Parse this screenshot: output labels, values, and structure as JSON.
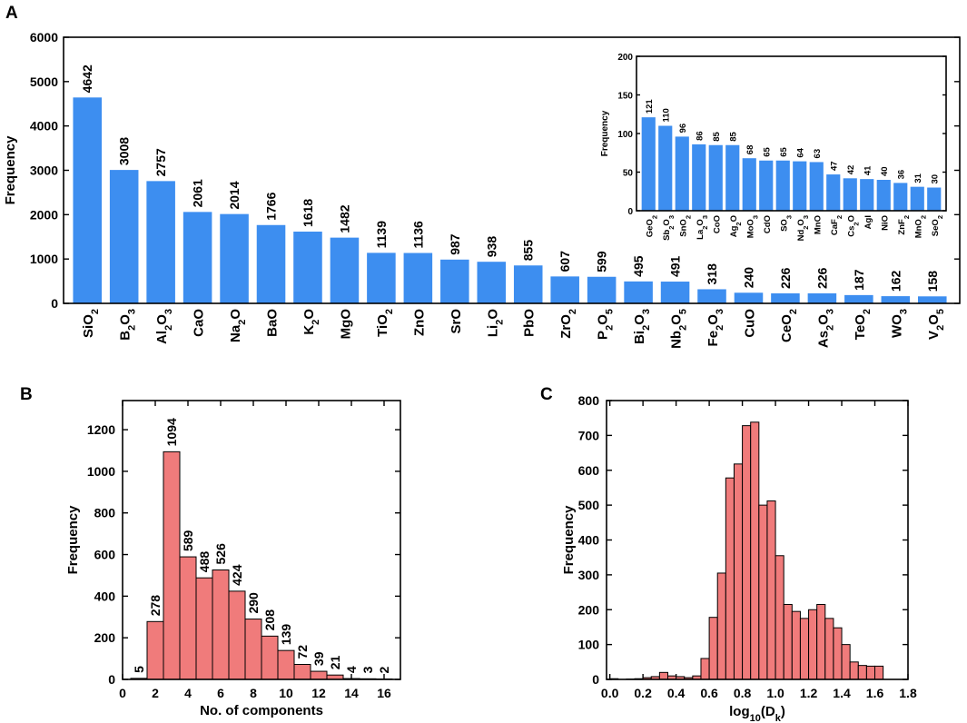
{
  "panels": {
    "a": "A",
    "b": "B",
    "c": "C"
  },
  "chart_data": [
    {
      "id": "A",
      "type": "bar",
      "ylabel": "Frequency",
      "xlabel": "",
      "ylim": [
        0,
        6000
      ],
      "yticks": [
        0,
        1000,
        2000,
        3000,
        4000,
        5000,
        6000
      ],
      "categories": [
        {
          "base": "SiO",
          "sub": "2"
        },
        {
          "base": "B",
          "sub": "2",
          "tail": "O",
          "sub2": "3"
        },
        {
          "base": "Al",
          "sub": "2",
          "tail": "O",
          "sub2": "3"
        },
        {
          "base": "CaO"
        },
        {
          "base": "Na",
          "sub": "2",
          "tail": "O"
        },
        {
          "base": "BaO"
        },
        {
          "base": "K",
          "sub": "2",
          "tail": "O"
        },
        {
          "base": "MgO"
        },
        {
          "base": "TiO",
          "sub": "2"
        },
        {
          "base": "ZnO"
        },
        {
          "base": "SrO"
        },
        {
          "base": "Li",
          "sub": "2",
          "tail": "O"
        },
        {
          "base": "PbO"
        },
        {
          "base": "ZrO",
          "sub": "2"
        },
        {
          "base": "P",
          "sub": "2",
          "tail": "O",
          "sub2": "5"
        },
        {
          "base": "Bi",
          "sub": "2",
          "tail": "O",
          "sub2": "3"
        },
        {
          "base": "Nb",
          "sub": "2",
          "tail": "O",
          "sub2": "5"
        },
        {
          "base": "Fe",
          "sub": "2",
          "tail": "O",
          "sub2": "3"
        },
        {
          "base": "CuO"
        },
        {
          "base": "CeO",
          "sub": "2"
        },
        {
          "base": "As",
          "sub": "2",
          "tail": "O",
          "sub2": "3"
        },
        {
          "base": "TeO",
          "sub": "2"
        },
        {
          "base": "WO",
          "sub": "3"
        },
        {
          "base": "V",
          "sub": "2",
          "tail": "O",
          "sub2": "5"
        }
      ],
      "values": [
        4642,
        3008,
        2757,
        2061,
        2014,
        1766,
        1618,
        1482,
        1139,
        1136,
        987,
        938,
        855,
        607,
        599,
        495,
        491,
        318,
        240,
        226,
        226,
        187,
        162,
        158
      ],
      "color": "#3d8ef0",
      "inset": {
        "type": "bar",
        "ylabel": "Frequency",
        "ylim": [
          0,
          200
        ],
        "yticks": [
          0,
          50,
          100,
          150,
          200
        ],
        "categories": [
          {
            "base": "GeO",
            "sub": "2"
          },
          {
            "base": "Sb",
            "sub": "2",
            "tail": "O",
            "sub2": "3"
          },
          {
            "base": "SnO",
            "sub": "2"
          },
          {
            "base": "La",
            "sub": "2",
            "tail": "O",
            "sub2": "3"
          },
          {
            "base": "CoO"
          },
          {
            "base": "Ag",
            "sub": "2",
            "tail": "O"
          },
          {
            "base": "MoO",
            "sub": "3"
          },
          {
            "base": "CdO"
          },
          {
            "base": "SO",
            "sub": "3"
          },
          {
            "base": "Nd",
            "sub": "2",
            "tail": "O",
            "sub2": "3"
          },
          {
            "base": "MnO"
          },
          {
            "base": "CaF",
            "sub": "2"
          },
          {
            "base": "Cs",
            "sub": "2",
            "tail": "O"
          },
          {
            "base": "AgI"
          },
          {
            "base": "NiO"
          },
          {
            "base": "ZnF",
            "sub": "2"
          },
          {
            "base": "MnO",
            "sub": "2"
          },
          {
            "base": "SeO",
            "sub": "2"
          }
        ],
        "values": [
          121,
          110,
          96,
          86,
          85,
          85,
          68,
          65,
          65,
          64,
          63,
          47,
          42,
          41,
          40,
          36,
          31,
          30
        ]
      }
    },
    {
      "id": "B",
      "type": "bar",
      "xlabel": "No. of components",
      "ylabel": "Frequency",
      "xlim": [
        0,
        17
      ],
      "ylim": [
        0,
        1340
      ],
      "xticks": [
        0,
        2,
        4,
        6,
        8,
        10,
        12,
        14,
        16
      ],
      "yticks": [
        0,
        200,
        400,
        600,
        800,
        1000,
        1200
      ],
      "x": [
        1,
        2,
        3,
        4,
        5,
        6,
        7,
        8,
        9,
        10,
        11,
        12,
        13,
        14,
        15,
        16
      ],
      "values": [
        5,
        278,
        1094,
        589,
        488,
        526,
        424,
        290,
        208,
        139,
        72,
        39,
        21,
        4,
        3,
        2
      ],
      "color": "#f07b7b"
    },
    {
      "id": "C",
      "type": "bar",
      "xlabel": "log10(Dk)",
      "xlabel_base": "log",
      "xlabel_sub": "10",
      "xlabel_mid": "(D",
      "xlabel_sub2": "k",
      "xlabel_end": ")",
      "ylabel": "Frequency",
      "xlim": [
        -0.02,
        1.8
      ],
      "ylim": [
        0,
        800
      ],
      "xticks": [
        0.0,
        0.2,
        0.4,
        0.6,
        0.8,
        1.0,
        1.2,
        1.4,
        1.6,
        1.8
      ],
      "xtick_labels": [
        "0.0",
        "0.2",
        "0.4",
        "0.6",
        "0.8",
        "1.0",
        "1.2",
        "1.4",
        "1.6",
        "1.8"
      ],
      "yticks": [
        0,
        100,
        200,
        300,
        400,
        500,
        600,
        700,
        800
      ],
      "bin_width": 0.05,
      "bin_starts": [
        0.0,
        0.05,
        0.1,
        0.15,
        0.2,
        0.25,
        0.3,
        0.35,
        0.4,
        0.45,
        0.5,
        0.55,
        0.6,
        0.65,
        0.7,
        0.75,
        0.8,
        0.85,
        0.9,
        0.95,
        1.0,
        1.05,
        1.1,
        1.15,
        1.2,
        1.25,
        1.3,
        1.35,
        1.4,
        1.45,
        1.5,
        1.55,
        1.6,
        1.65
      ],
      "values": [
        2,
        0,
        1,
        2,
        5,
        8,
        20,
        10,
        8,
        5,
        10,
        60,
        178,
        305,
        578,
        618,
        728,
        738,
        500,
        512,
        355,
        215,
        195,
        175,
        200,
        215,
        175,
        148,
        100,
        50,
        40,
        38,
        38,
        0
      ],
      "color": "#f07b7b"
    }
  ]
}
